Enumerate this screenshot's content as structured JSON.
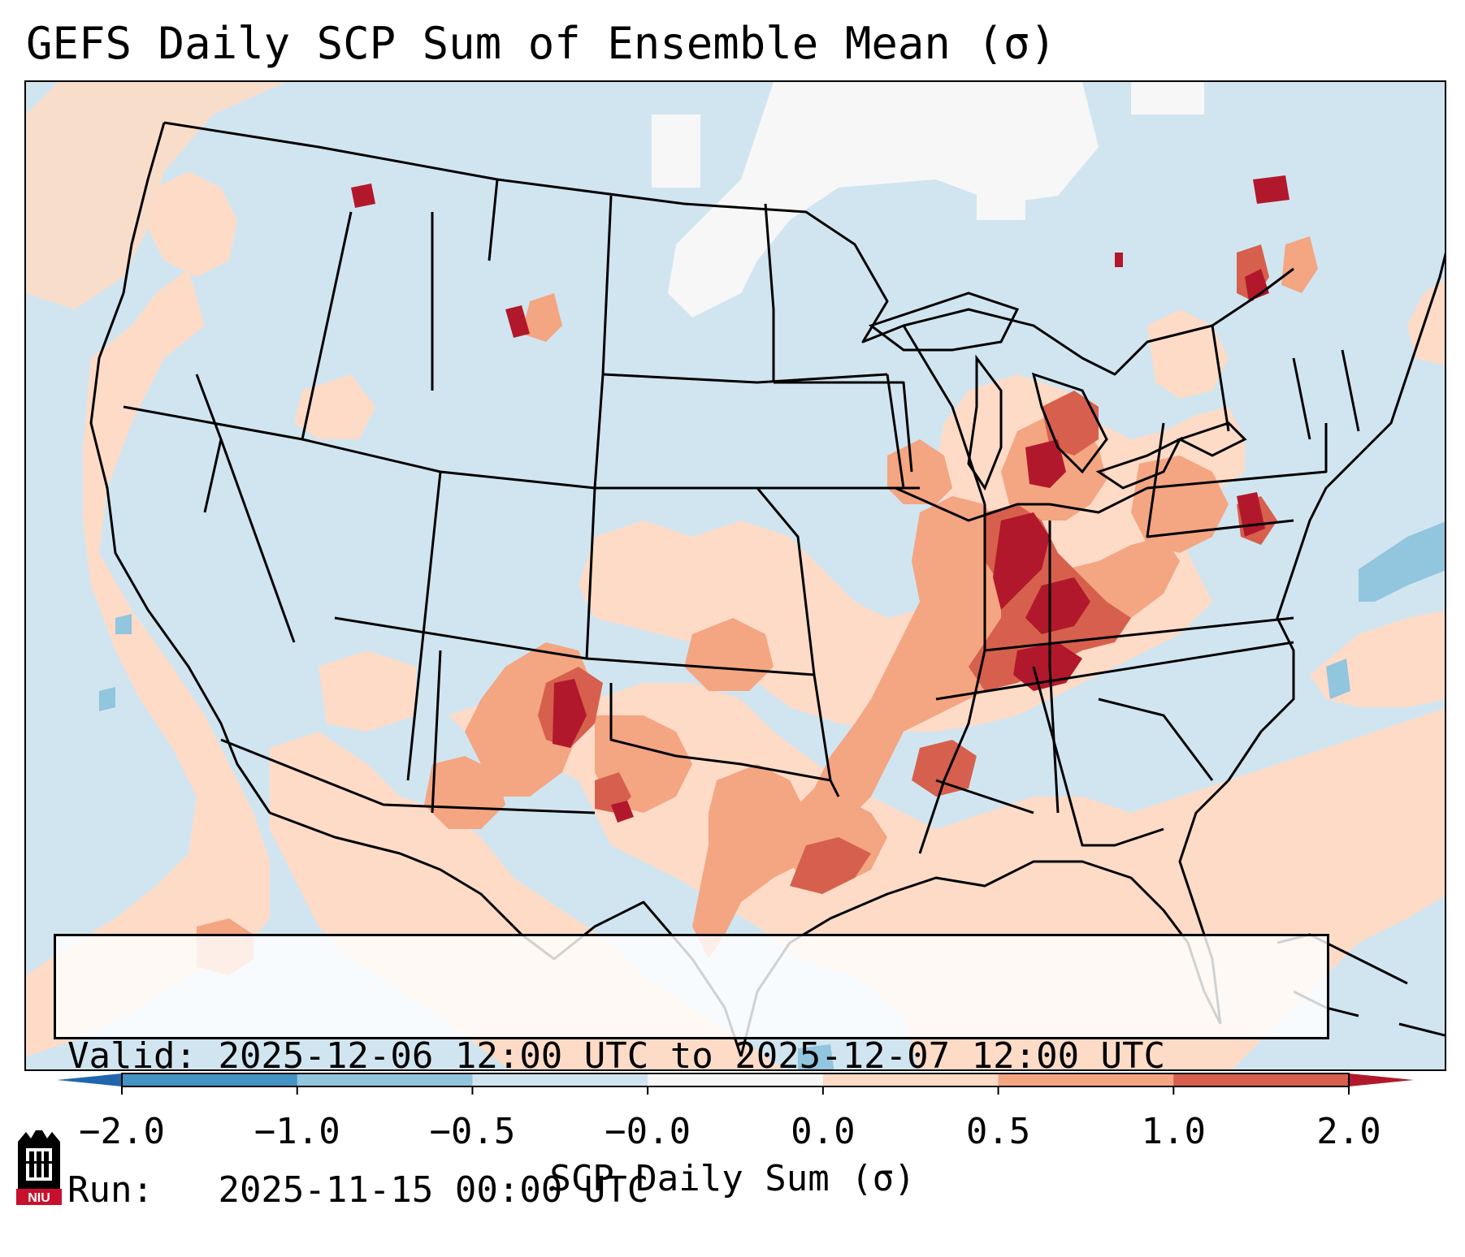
{
  "title": "GEFS Daily SCP Sum of Ensemble Mean (σ)",
  "info": {
    "valid_label": "Valid:",
    "valid_value": "2025-12-06 12:00 UTC to 2025-12-07 12:00 UTC",
    "run_label": "Run:",
    "run_value": "2025-11-15 00:00 UTC"
  },
  "colorbar": {
    "label": "SCP Daily Sum (σ)",
    "ticks": [
      "−2.0",
      "−1.0",
      "−0.5",
      "−0.0",
      "0.0",
      "0.5",
      "1.0",
      "2.0"
    ],
    "bins": [
      {
        "color": "#4393c3"
      },
      {
        "color": "#92c5de"
      },
      {
        "color": "#d1e5f0"
      },
      {
        "color": "#f7f7f7"
      },
      {
        "color": "#fddbc7"
      },
      {
        "color": "#f4a582"
      },
      {
        "color": "#d6604d"
      }
    ],
    "under_color": "#2166ac",
    "over_color": "#b2182b"
  },
  "logo": {
    "text": "NIU",
    "name": "Northern Illinois University"
  }
}
